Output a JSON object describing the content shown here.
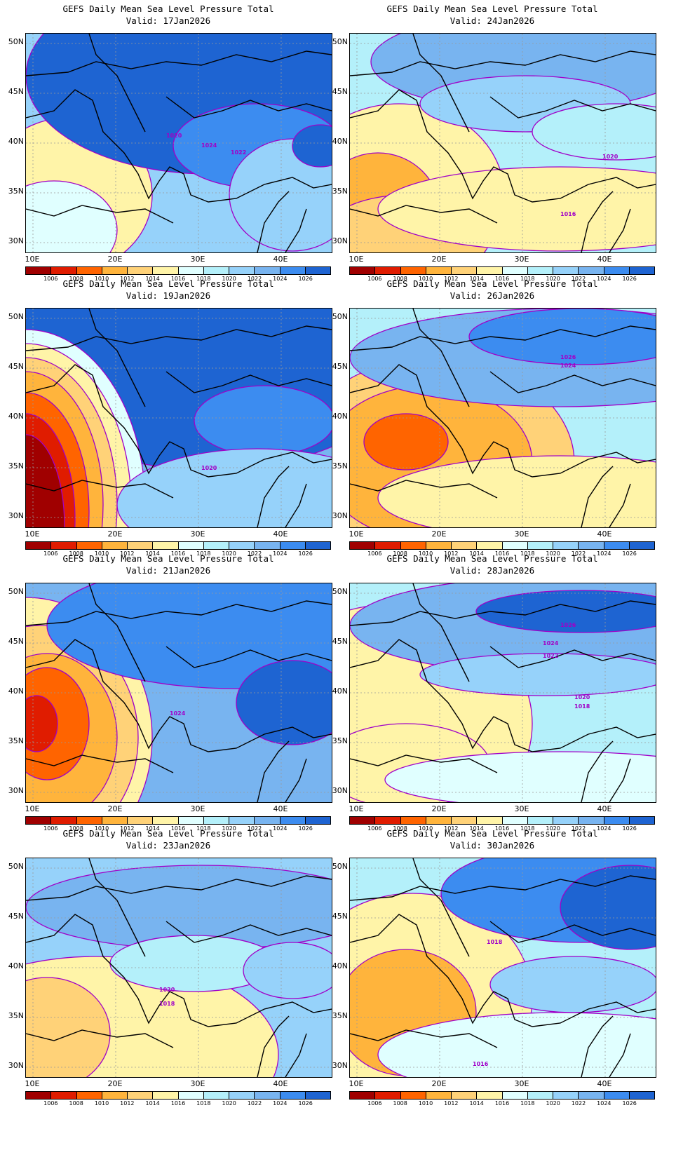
{
  "map_data": {
    "variable": "GEFS Daily Mean Sea Level Pressure Total",
    "valid_prefix": "Valid:",
    "lat_labels": [
      "50N",
      "45N",
      "40N",
      "35N",
      "30N"
    ],
    "lon_labels": [
      "10E",
      "20E",
      "30E",
      "40E"
    ],
    "colorbar": {
      "labels": [
        "1006",
        "1008",
        "1010",
        "1012",
        "1014",
        "1016",
        "1018",
        "1020",
        "1022",
        "1024",
        "1026"
      ],
      "colors": [
        "#a00000",
        "#e01c00",
        "#ff6400",
        "#ffb43c",
        "#ffd278",
        "#fff4a8",
        "#e0ffff",
        "#b4f0fa",
        "#96d2fa",
        "#78b4f0",
        "#3c8cf0",
        "#1e64d2"
      ]
    },
    "contour_color": "#a000c8",
    "panels": [
      {
        "valid": "17Jan2026",
        "labels": [
          "1020",
          "1024",
          "1022"
        ]
      },
      {
        "valid": "24Jan2026",
        "labels": [
          "1020",
          "1016"
        ]
      },
      {
        "valid": "19Jan2026",
        "labels": [
          "1020"
        ]
      },
      {
        "valid": "26Jan2026",
        "labels": [
          "1026",
          "1024"
        ]
      },
      {
        "valid": "21Jan2026",
        "labels": [
          "1024"
        ]
      },
      {
        "valid": "28Jan2026",
        "labels": [
          "1026",
          "1024",
          "1022",
          "1020",
          "1018"
        ]
      },
      {
        "valid": "23Jan2026",
        "labels": [
          "1020",
          "1018"
        ]
      },
      {
        "valid": "30Jan2026",
        "labels": [
          "1018",
          "1016"
        ]
      }
    ]
  }
}
